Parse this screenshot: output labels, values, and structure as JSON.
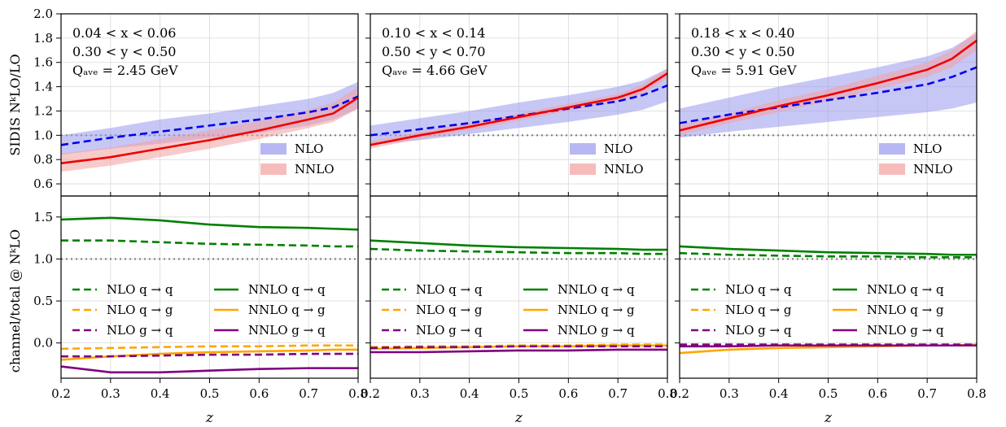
{
  "colors": {
    "nlo": "#0000ee",
    "nlo_band": "#9999ee",
    "nnlo": "#ee0000",
    "nnlo_band": "#f2a0a0",
    "qq": "#008000",
    "qg": "#ffa500",
    "gq": "#800080",
    "reference": "#808080"
  },
  "x_axis": {
    "label": "z",
    "range": [
      0.2,
      0.8
    ],
    "ticks": [
      "0.2",
      "0.3",
      "0.4",
      "0.5",
      "0.6",
      "0.7",
      "0.8"
    ]
  },
  "top_axis": {
    "label": "SIDIS NᵏLO/LO",
    "range": [
      0.5,
      2.0
    ],
    "ticks": [
      "0.6",
      "0.8",
      "1.0",
      "1.2",
      "1.4",
      "1.6",
      "1.8",
      "2.0"
    ]
  },
  "bottom_axis": {
    "label": "channel/total @ NᵏLO",
    "range": [
      -0.42,
      1.75
    ],
    "ticks": [
      "0.0",
      "0.5",
      "1.0",
      "1.5"
    ]
  },
  "top_legend": [
    "NLO",
    "NNLO"
  ],
  "bottom_legend": [
    "NLO q → q",
    "NNLO q → q",
    "NLO q → g",
    "NNLO q → g",
    "NLO g → q",
    "NNLO g → q"
  ],
  "chart_data": [
    {
      "type": "line",
      "panel": "left",
      "info": [
        "0.04 < x < 0.06",
        "0.30 < y < 0.50",
        "Qₐᵥₑ = 2.45 GeV"
      ],
      "x": [
        0.2,
        0.3,
        0.4,
        0.5,
        0.6,
        0.7,
        0.75,
        0.8
      ],
      "ratio": {
        "NLO": {
          "center": [
            0.92,
            0.98,
            1.03,
            1.08,
            1.13,
            1.19,
            1.23,
            1.32
          ],
          "lower": [
            0.84,
            0.89,
            0.93,
            0.98,
            1.02,
            1.08,
            1.13,
            1.22
          ],
          "upper": [
            1.0,
            1.06,
            1.13,
            1.18,
            1.24,
            1.3,
            1.35,
            1.44
          ]
        },
        "NNLO": {
          "center": [
            0.77,
            0.82,
            0.89,
            0.96,
            1.04,
            1.13,
            1.18,
            1.31
          ],
          "lower": [
            0.7,
            0.75,
            0.82,
            0.89,
            0.97,
            1.06,
            1.11,
            1.22
          ],
          "upper": [
            0.85,
            0.9,
            0.97,
            1.04,
            1.12,
            1.21,
            1.27,
            1.4
          ]
        }
      },
      "channels": {
        "NLO q → q": [
          1.22,
          1.22,
          1.2,
          1.18,
          1.17,
          1.16,
          1.15,
          1.15
        ],
        "NNLO q → q": [
          1.47,
          1.49,
          1.46,
          1.41,
          1.38,
          1.37,
          1.36,
          1.35
        ],
        "NLO q → g": [
          -0.07,
          -0.06,
          -0.05,
          -0.04,
          -0.04,
          -0.03,
          -0.03,
          -0.03
        ],
        "NNLO q → g": [
          -0.2,
          -0.16,
          -0.13,
          -0.11,
          -0.1,
          -0.09,
          -0.08,
          -0.08
        ],
        "NLO g → q": [
          -0.16,
          -0.16,
          -0.15,
          -0.14,
          -0.14,
          -0.13,
          -0.13,
          -0.13
        ],
        "NNLO g → q": [
          -0.28,
          -0.35,
          -0.35,
          -0.33,
          -0.31,
          -0.3,
          -0.3,
          -0.3
        ]
      }
    },
    {
      "type": "line",
      "panel": "middle",
      "info": [
        "0.10 < x < 0.14",
        "0.50 < y < 0.70",
        "Qₐᵥₑ = 4.66 GeV"
      ],
      "x": [
        0.2,
        0.3,
        0.4,
        0.5,
        0.6,
        0.7,
        0.75,
        0.8
      ],
      "ratio": {
        "NLO": {
          "center": [
            1.0,
            1.05,
            1.1,
            1.16,
            1.22,
            1.28,
            1.33,
            1.41
          ],
          "lower": [
            0.92,
            0.96,
            1.01,
            1.06,
            1.11,
            1.17,
            1.21,
            1.28
          ],
          "upper": [
            1.08,
            1.14,
            1.2,
            1.27,
            1.33,
            1.4,
            1.45,
            1.55
          ]
        },
        "NNLO": {
          "center": [
            0.92,
            1.0,
            1.07,
            1.15,
            1.23,
            1.31,
            1.38,
            1.51
          ],
          "lower": [
            0.89,
            0.97,
            1.04,
            1.12,
            1.2,
            1.28,
            1.34,
            1.47
          ],
          "upper": [
            0.95,
            1.03,
            1.1,
            1.18,
            1.26,
            1.34,
            1.42,
            1.55
          ]
        }
      },
      "channels": {
        "NLO q → q": [
          1.12,
          1.1,
          1.09,
          1.08,
          1.07,
          1.07,
          1.06,
          1.06
        ],
        "NNLO q → q": [
          1.22,
          1.19,
          1.16,
          1.14,
          1.13,
          1.12,
          1.11,
          1.11
        ],
        "NLO q → g": [
          -0.05,
          -0.04,
          -0.04,
          -0.03,
          -0.03,
          -0.02,
          -0.02,
          -0.02
        ],
        "NNLO q → g": [
          -0.07,
          -0.06,
          -0.05,
          -0.04,
          -0.04,
          -0.03,
          -0.03,
          -0.03
        ],
        "NLO g → q": [
          -0.06,
          -0.05,
          -0.05,
          -0.04,
          -0.04,
          -0.04,
          -0.04,
          -0.04
        ],
        "NNLO g → q": [
          -0.11,
          -0.11,
          -0.1,
          -0.09,
          -0.09,
          -0.08,
          -0.08,
          -0.08
        ]
      }
    },
    {
      "type": "line",
      "panel": "right",
      "info": [
        "0.18 < x < 0.40",
        "0.30 < y < 0.50",
        "Qₐᵥₑ = 5.91 GeV"
      ],
      "x": [
        0.2,
        0.3,
        0.4,
        0.5,
        0.6,
        0.7,
        0.75,
        0.8
      ],
      "ratio": {
        "NLO": {
          "center": [
            1.1,
            1.17,
            1.23,
            1.29,
            1.35,
            1.42,
            1.48,
            1.56
          ],
          "lower": [
            0.98,
            1.03,
            1.07,
            1.11,
            1.15,
            1.19,
            1.22,
            1.27
          ],
          "upper": [
            1.22,
            1.31,
            1.4,
            1.48,
            1.56,
            1.65,
            1.72,
            1.84
          ]
        },
        "NNLO": {
          "center": [
            1.04,
            1.14,
            1.24,
            1.33,
            1.43,
            1.54,
            1.63,
            1.78
          ],
          "lower": [
            1.0,
            1.1,
            1.19,
            1.28,
            1.38,
            1.48,
            1.56,
            1.7
          ],
          "upper": [
            1.08,
            1.18,
            1.29,
            1.38,
            1.49,
            1.6,
            1.7,
            1.86
          ]
        }
      },
      "channels": {
        "NLO q → q": [
          1.07,
          1.05,
          1.04,
          1.03,
          1.03,
          1.02,
          1.02,
          1.02
        ],
        "NNLO q → q": [
          1.15,
          1.12,
          1.1,
          1.08,
          1.07,
          1.06,
          1.05,
          1.05
        ],
        "NLO q → g": [
          -0.02,
          -0.02,
          -0.02,
          -0.02,
          -0.02,
          -0.02,
          -0.02,
          -0.02
        ],
        "NNLO q → g": [
          -0.12,
          -0.08,
          -0.06,
          -0.05,
          -0.04,
          -0.03,
          -0.03,
          -0.02
        ],
        "NLO g → q": [
          -0.02,
          -0.02,
          -0.02,
          -0.02,
          -0.02,
          -0.02,
          -0.02,
          -0.02
        ],
        "NNLO g → q": [
          -0.04,
          -0.04,
          -0.03,
          -0.03,
          -0.03,
          -0.03,
          -0.03,
          -0.03
        ]
      }
    }
  ]
}
